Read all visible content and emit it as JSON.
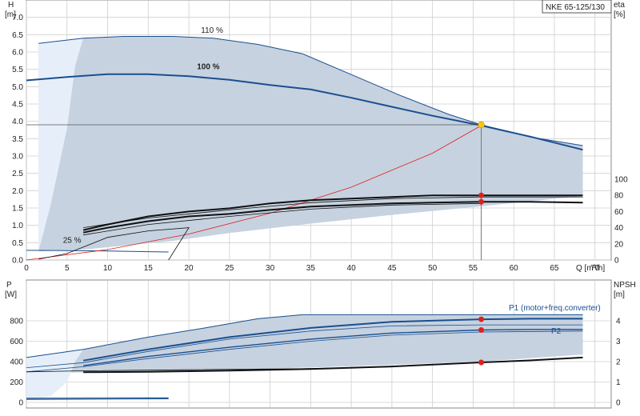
{
  "pump_model": "NKE 65-125/130",
  "colors": {
    "curve_blue": "#1a4f8f",
    "envelope_fill": "#c6d2e0",
    "light_fill": "#e6eff9",
    "grid": "#cfcfcf",
    "duty_point_yellow": "#f5c518",
    "marker_red": "#e0201b",
    "system_curve_red": "#e0201b",
    "black": "#111111"
  },
  "chart_data": [
    {
      "type": "line",
      "name_panel": "head-efficiency",
      "xlabel": "Q [m³/h]",
      "x_ticks": [
        0,
        5,
        10,
        15,
        20,
        25,
        30,
        35,
        40,
        45,
        50,
        55,
        60,
        65,
        70
      ],
      "ylabel_left": [
        "H",
        "[m]"
      ],
      "ylim": [
        0,
        7.5
      ],
      "y_ticks": [
        "0.0",
        "0.5",
        "1.0",
        "1.5",
        "2.0",
        "2.5",
        "3.0",
        "3.5",
        "4.0",
        "4.5",
        "5.0",
        "5.5",
        "6.0",
        "6.5",
        "7.0"
      ],
      "ylabel_right": [
        "eta",
        "[%]"
      ],
      "y2lim": [
        0,
        110
      ],
      "y2_ticks": [
        0,
        20,
        40,
        60,
        80,
        100
      ],
      "curve_labels": [
        "110 %",
        "100 %",
        "25 %"
      ],
      "envelope_upper": [
        [
          1.5,
          6.25
        ],
        [
          7,
          6.4
        ],
        [
          12,
          6.45
        ],
        [
          18,
          6.45
        ],
        [
          23,
          6.4
        ],
        [
          28.5,
          6.22
        ],
        [
          34,
          5.95
        ],
        [
          40,
          5.35
        ],
        [
          46,
          4.75
        ],
        [
          52,
          4.2
        ],
        [
          56,
          3.9
        ],
        [
          62,
          3.55
        ],
        [
          68.5,
          3.3
        ],
        [
          68.5,
          1.85
        ],
        [
          56,
          1.55
        ],
        [
          45,
          1.3
        ],
        [
          35,
          1.05
        ],
        [
          25,
          0.78
        ],
        [
          18,
          0.55
        ],
        [
          7,
          0.3
        ],
        [
          1.5,
          0.25
        ]
      ],
      "light_region": [
        [
          1.5,
          6.25
        ],
        [
          7,
          6.4
        ],
        [
          6,
          5.6
        ],
        [
          5,
          3.8
        ],
        [
          3,
          1.6
        ],
        [
          1.5,
          0.25
        ]
      ],
      "series": [
        {
          "name": "110 %",
          "values": [
            [
              1.5,
              6.25
            ],
            [
              7,
              6.4
            ],
            [
              12,
              6.45
            ],
            [
              18,
              6.45
            ],
            [
              23,
              6.4
            ],
            [
              28.5,
              6.22
            ],
            [
              34,
              5.95
            ],
            [
              40,
              5.35
            ],
            [
              46,
              4.75
            ],
            [
              52,
              4.2
            ],
            [
              56,
              3.9
            ],
            [
              62,
              3.55
            ],
            [
              68.5,
              3.3
            ]
          ]
        },
        {
          "name": "100 %",
          "values": [
            [
              0,
              5.18
            ],
            [
              5,
              5.28
            ],
            [
              10,
              5.36
            ],
            [
              15,
              5.36
            ],
            [
              20,
              5.3
            ],
            [
              25,
              5.2
            ],
            [
              30,
              5.05
            ],
            [
              35,
              4.92
            ],
            [
              40,
              4.68
            ],
            [
              45,
              4.42
            ],
            [
              50,
              4.16
            ],
            [
              56,
              3.88
            ],
            [
              62,
              3.56
            ],
            [
              68.5,
              3.18
            ]
          ]
        },
        {
          "name": "25 %",
          "values": [
            [
              0,
              0.28
            ],
            [
              5,
              0.27
            ],
            [
              10,
              0.26
            ],
            [
              15,
              0.24
            ],
            [
              17.5,
              0.23
            ]
          ]
        },
        {
          "name": "system",
          "values": [
            [
              0,
              0
            ],
            [
              10,
              0.3
            ],
            [
              20,
              0.75
            ],
            [
              30,
              1.35
            ],
            [
              40,
              2.1
            ],
            [
              50,
              3.08
            ],
            [
              56,
              3.88
            ]
          ]
        },
        {
          "name": "eta-1",
          "axis": "right",
          "values": [
            [
              1.5,
              1
            ],
            [
              5,
              8
            ],
            [
              10,
              28
            ],
            [
              15,
              36
            ],
            [
              20,
              40
            ],
            [
              17.5,
              0
            ]
          ]
        },
        {
          "name": "eta-2",
          "axis": "right",
          "values": [
            [
              7,
              37
            ],
            [
              10,
              44
            ],
            [
              15,
              54
            ],
            [
              20,
              60
            ],
            [
              25,
              64
            ],
            [
              30,
              70
            ],
            [
              35,
              74
            ],
            [
              40,
              76
            ],
            [
              45,
              78
            ],
            [
              50,
              80
            ],
            [
              56,
              80
            ],
            [
              62,
              80
            ],
            [
              68.5,
              80
            ]
          ]
        },
        {
          "name": "eta-3",
          "axis": "right",
          "values": [
            [
              7,
              34
            ],
            [
              10,
              40
            ],
            [
              15,
              48
            ],
            [
              20,
              54
            ],
            [
              25,
              57
            ],
            [
              30,
              62
            ],
            [
              35,
              66
            ],
            [
              40,
              68
            ],
            [
              45,
              70
            ],
            [
              50,
              71
            ],
            [
              56,
              72
            ],
            [
              62,
              72
            ],
            [
              68.5,
              71
            ]
          ]
        }
      ],
      "duty_point": {
        "q": 56,
        "h": 3.9
      },
      "markers_eta": [
        80,
        72
      ]
    },
    {
      "type": "line",
      "name_panel": "power-npsh",
      "ylabel_left": [
        "P",
        "[W]"
      ],
      "ylim": [
        0,
        1000
      ],
      "y_ticks": [
        0,
        200,
        400,
        600,
        800
      ],
      "ylabel_right": [
        "NPSH",
        "[m]"
      ],
      "y2lim": [
        0,
        5
      ],
      "y2_ticks": [
        0,
        1,
        2,
        3,
        4
      ],
      "envelope_upper": [
        [
          0,
          440
        ],
        [
          7,
          520
        ],
        [
          15,
          640
        ],
        [
          22,
          730
        ],
        [
          28.5,
          820
        ],
        [
          34,
          860
        ],
        [
          56,
          860
        ],
        [
          68.5,
          860
        ],
        [
          68.5,
          470
        ],
        [
          56,
          400
        ],
        [
          40,
          355
        ],
        [
          25,
          320
        ],
        [
          10,
          295
        ],
        [
          0,
          290
        ]
      ],
      "light_region": [
        [
          0,
          440
        ],
        [
          7,
          520
        ],
        [
          6,
          400
        ],
        [
          5,
          200
        ],
        [
          3,
          60
        ],
        [
          0,
          20
        ]
      ],
      "series": [
        {
          "name": "P1 (motor+freq.converter)",
          "values": [
            [
              7,
              410
            ],
            [
              15,
              520
            ],
            [
              25,
              640
            ],
            [
              35,
              730
            ],
            [
              45,
              790
            ],
            [
              56,
              815
            ],
            [
              62,
              820
            ],
            [
              68.5,
              820
            ]
          ]
        },
        {
          "name": "P2",
          "values": [
            [
              7,
              360
            ],
            [
              15,
              450
            ],
            [
              25,
              540
            ],
            [
              35,
              620
            ],
            [
              45,
              680
            ],
            [
              56,
              710
            ],
            [
              62,
              715
            ],
            [
              68.5,
              715
            ]
          ]
        },
        {
          "name": "P1-110",
          "values": [
            [
              0,
              340
            ],
            [
              7,
              390
            ],
            [
              15,
              500
            ],
            [
              25,
              620
            ],
            [
              35,
              700
            ],
            [
              45,
              750
            ],
            [
              56,
              760
            ],
            [
              68.5,
              760
            ]
          ]
        },
        {
          "name": "P2-110",
          "values": [
            [
              0,
              300
            ],
            [
              7,
              350
            ],
            [
              15,
              430
            ],
            [
              25,
              520
            ],
            [
              35,
              600
            ],
            [
              45,
              660
            ],
            [
              56,
              690
            ],
            [
              68.5,
              700
            ]
          ]
        },
        {
          "name": "P-25",
          "values": [
            [
              0,
              40
            ],
            [
              17.5,
              45
            ]
          ]
        },
        {
          "name": "NPSH",
          "axis": "right",
          "values": [
            [
              7,
              1.48
            ],
            [
              15,
              1.5
            ],
            [
              25,
              1.56
            ],
            [
              35,
              1.64
            ],
            [
              45,
              1.76
            ],
            [
              56,
              1.96
            ],
            [
              62,
              2.06
            ],
            [
              68.5,
              2.2
            ]
          ]
        },
        {
          "name": "NPSH-2",
          "axis": "right",
          "values": [
            [
              0,
              1.5
            ],
            [
              7,
              1.55
            ],
            [
              20,
              1.6
            ],
            [
              35,
              1.66
            ],
            [
              45,
              1.74
            ]
          ]
        }
      ],
      "markers": {
        "P1": 815,
        "P2": 710,
        "NPSH": 1.96
      }
    }
  ]
}
